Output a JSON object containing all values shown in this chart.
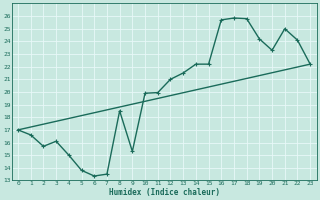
{
  "xlabel": "Humidex (Indice chaleur)",
  "xlim": [
    -0.5,
    23.5
  ],
  "ylim": [
    13,
    27
  ],
  "yticks": [
    13,
    14,
    15,
    16,
    17,
    18,
    19,
    20,
    21,
    22,
    23,
    24,
    25,
    26
  ],
  "xticks": [
    0,
    1,
    2,
    3,
    4,
    5,
    6,
    7,
    8,
    9,
    10,
    11,
    12,
    13,
    14,
    15,
    16,
    17,
    18,
    19,
    20,
    21,
    22,
    23
  ],
  "background_color": "#c8e8e0",
  "grid_color": "#e8f8f8",
  "line_color": "#1a6b5a",
  "curve1_x": [
    0,
    1,
    2,
    3,
    4,
    5,
    6,
    7,
    8,
    9,
    10,
    11,
    12,
    13,
    14,
    15,
    16,
    17,
    18,
    19,
    20,
    21,
    22,
    23
  ],
  "curve1_y": [
    17.0,
    16.6,
    15.7,
    16.1,
    15.0,
    13.8,
    13.35,
    13.5,
    18.5,
    15.3,
    19.9,
    19.95,
    21.0,
    21.5,
    22.2,
    22.2,
    25.7,
    25.85,
    25.8,
    24.2,
    23.3,
    25.0,
    24.1,
    22.2
  ],
  "curve2_x": [
    0,
    23
  ],
  "curve2_y": [
    17.0,
    22.2
  ],
  "marker_size": 2.5,
  "line_width": 1.0
}
